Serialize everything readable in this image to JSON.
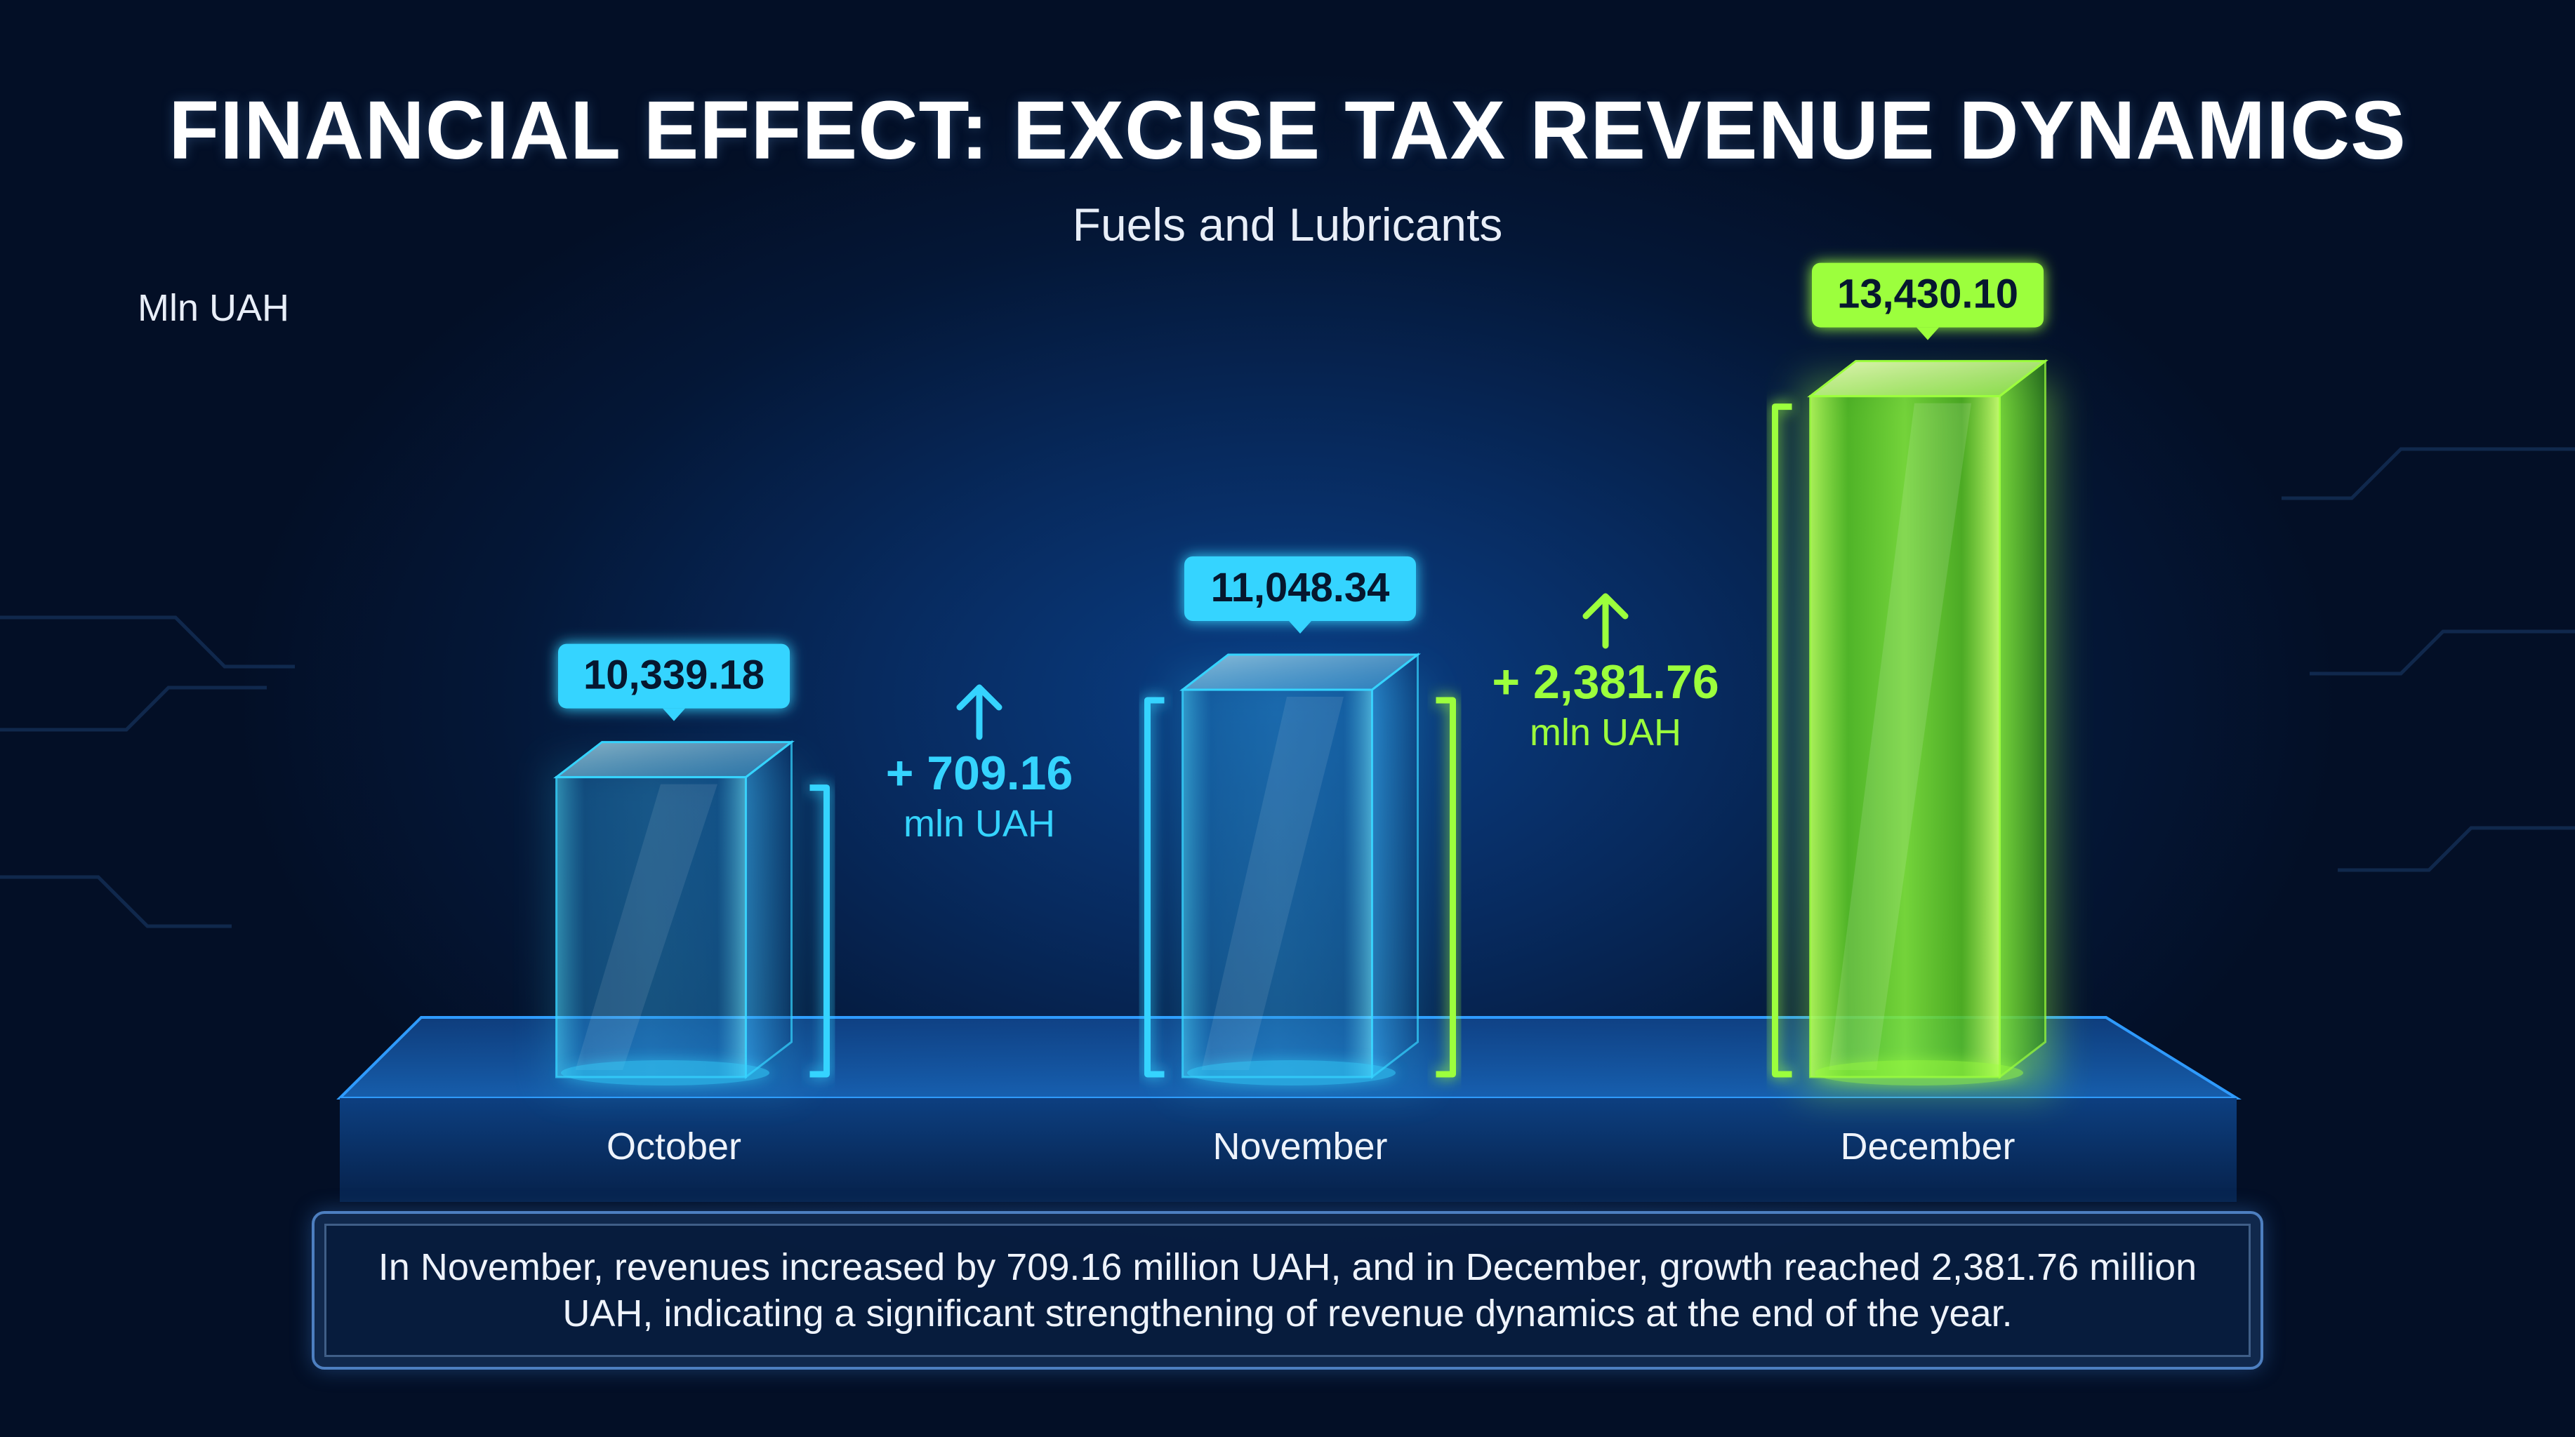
{
  "header": {
    "title": "FINANCIAL EFFECT: EXCISE TAX REVENUE DYNAMICS",
    "subtitle": "Fuels and Lubricants",
    "unit": "Mln UAH"
  },
  "chart_data": {
    "type": "bar",
    "title": "FINANCIAL EFFECT: EXCISE TAX REVENUE DYNAMICS",
    "subtitle": "Fuels and Lubricants",
    "ylabel": "Mln UAH",
    "xlabel": "",
    "categories": [
      "October",
      "November",
      "December"
    ],
    "values": [
      10339.18,
      11048.34,
      13430.1
    ],
    "value_labels": [
      "10,339.18",
      "11,048.34",
      "13,430.10"
    ],
    "ylim": [
      0,
      14000
    ],
    "grid": false,
    "colors": {
      "standard": "#35d4ff",
      "highlight": "#9cff3c"
    },
    "highlight_index": 2,
    "annotations": [
      {
        "between": [
          "October",
          "November"
        ],
        "value_label": "+ 709.16",
        "unit": "mln UAH",
        "color": "#35d4ff"
      },
      {
        "between": [
          "November",
          "December"
        ],
        "value_label": "+ 2,381.76",
        "unit": "mln UAH",
        "color": "#9cff3c"
      }
    ]
  },
  "summary": {
    "text": "In November, revenues increased by 709.16 million UAH, and in December, growth reached 2,381.76 million UAH, indicating a significant strengthening of revenue dynamics at the end of the year."
  }
}
